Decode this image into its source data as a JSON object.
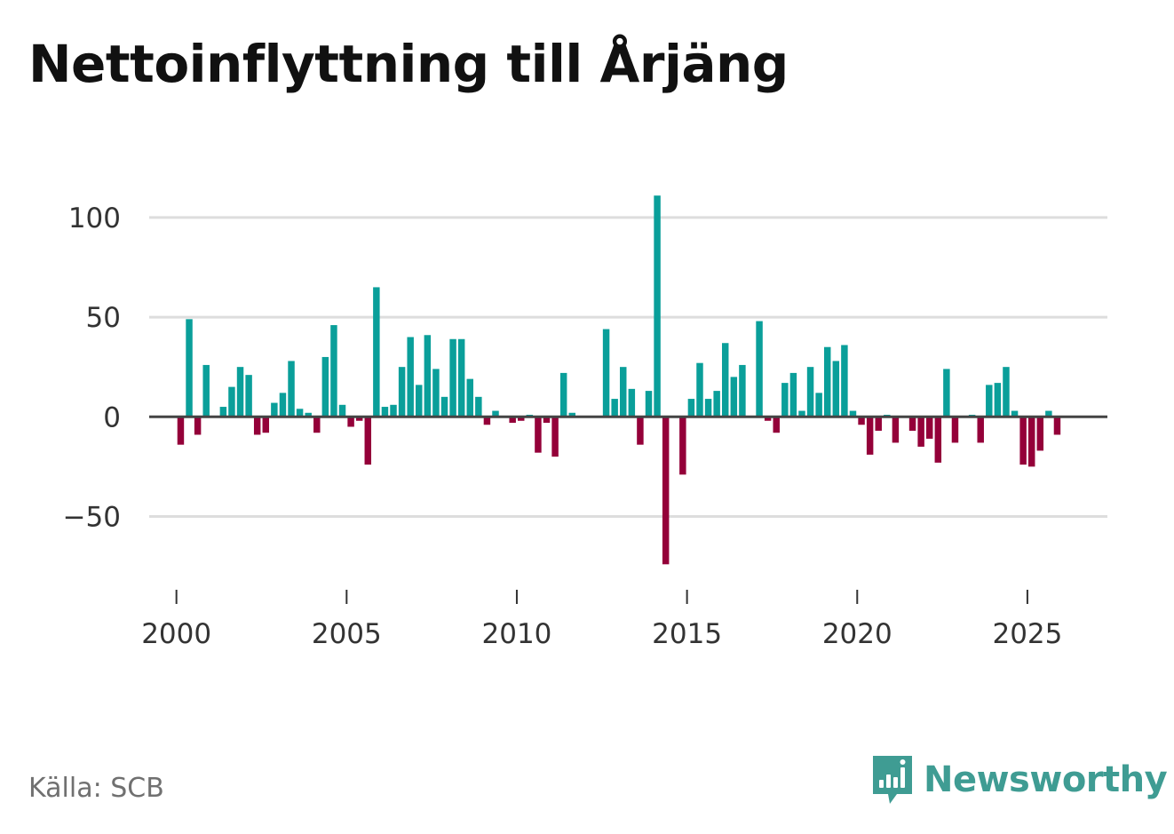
{
  "title": "Nettoinflyttning till Årjäng",
  "source": "Källa: SCB",
  "brand": {
    "name": "Newsworthy",
    "icon": "newsworthy-logo-icon"
  },
  "colors": {
    "positive": "#0a9f9a",
    "negative": "#940039",
    "zero_line": "#444444",
    "grid": "#dddddd",
    "brand": "#3f9c93"
  },
  "chart_data": {
    "type": "bar",
    "title": "Nettoinflyttning till Årjäng",
    "xlabel": "",
    "ylabel": "",
    "ylim": [
      -85,
      120
    ],
    "xlim": [
      1999.2,
      2027.35
    ],
    "yticks": [
      -50,
      0,
      50,
      100
    ],
    "ytick_labels": [
      "−50",
      "0",
      "50",
      "100"
    ],
    "xticks": [
      2000,
      2005,
      2010,
      2015,
      2020,
      2025
    ],
    "xtick_labels": [
      "2000",
      "2005",
      "2010",
      "2015",
      "2020",
      "2025"
    ],
    "grid": true,
    "frequency": "quarterly",
    "start": "2000Q1",
    "categories": [
      "2000Q1",
      "2000Q2",
      "2000Q3",
      "2000Q4",
      "2001Q1",
      "2001Q2",
      "2001Q3",
      "2001Q4",
      "2002Q1",
      "2002Q2",
      "2002Q3",
      "2002Q4",
      "2003Q1",
      "2003Q2",
      "2003Q3",
      "2003Q4",
      "2004Q1",
      "2004Q2",
      "2004Q3",
      "2004Q4",
      "2005Q1",
      "2005Q2",
      "2005Q3",
      "2005Q4",
      "2006Q1",
      "2006Q2",
      "2006Q3",
      "2006Q4",
      "2007Q1",
      "2007Q2",
      "2007Q3",
      "2007Q4",
      "2008Q1",
      "2008Q2",
      "2008Q3",
      "2008Q4",
      "2009Q1",
      "2009Q2",
      "2009Q3",
      "2009Q4",
      "2010Q1",
      "2010Q2",
      "2010Q3",
      "2010Q4",
      "2011Q1",
      "2011Q2",
      "2011Q3",
      "2011Q4",
      "2012Q1",
      "2012Q2",
      "2012Q3",
      "2012Q4",
      "2013Q1",
      "2013Q2",
      "2013Q3",
      "2013Q4",
      "2014Q1",
      "2014Q2",
      "2014Q3",
      "2014Q4",
      "2015Q1",
      "2015Q2",
      "2015Q3",
      "2015Q4",
      "2016Q1",
      "2016Q2",
      "2016Q3",
      "2016Q4",
      "2017Q1",
      "2017Q2",
      "2017Q3",
      "2017Q4",
      "2018Q1",
      "2018Q2",
      "2018Q3",
      "2018Q4",
      "2019Q1",
      "2019Q2",
      "2019Q3",
      "2019Q4",
      "2020Q1",
      "2020Q2",
      "2020Q3",
      "2020Q4",
      "2021Q1",
      "2021Q2",
      "2021Q3",
      "2021Q4",
      "2022Q1",
      "2022Q2",
      "2022Q3",
      "2022Q4",
      "2023Q1",
      "2023Q2",
      "2023Q3",
      "2023Q4",
      "2024Q1",
      "2024Q2",
      "2024Q3",
      "2024Q4",
      "2025Q1",
      "2025Q2",
      "2025Q3",
      "2025Q4"
    ],
    "values": [
      -14,
      49,
      -9,
      26,
      0,
      5,
      15,
      25,
      21,
      -9,
      -8,
      7,
      12,
      28,
      4,
      2,
      -8,
      30,
      46,
      6,
      -5,
      -2,
      -24,
      65,
      5,
      6,
      25,
      40,
      16,
      41,
      24,
      10,
      39,
      39,
      19,
      10,
      -4,
      3,
      0,
      -3,
      -2,
      1,
      -18,
      -3,
      -20,
      22,
      2,
      0,
      0,
      0,
      44,
      9,
      25,
      14,
      -14,
      13,
      111,
      -74,
      0,
      -29,
      9,
      27,
      9,
      13,
      37,
      20,
      26,
      0,
      48,
      -2,
      -8,
      17,
      22,
      3,
      25,
      12,
      35,
      28,
      36,
      3,
      -4,
      -19,
      -7,
      1,
      -13,
      0,
      -7,
      -15,
      -11,
      -23,
      24,
      -13,
      0,
      1,
      -13,
      16,
      17,
      25,
      3,
      -24,
      -25,
      -17,
      3,
      -9
    ]
  }
}
